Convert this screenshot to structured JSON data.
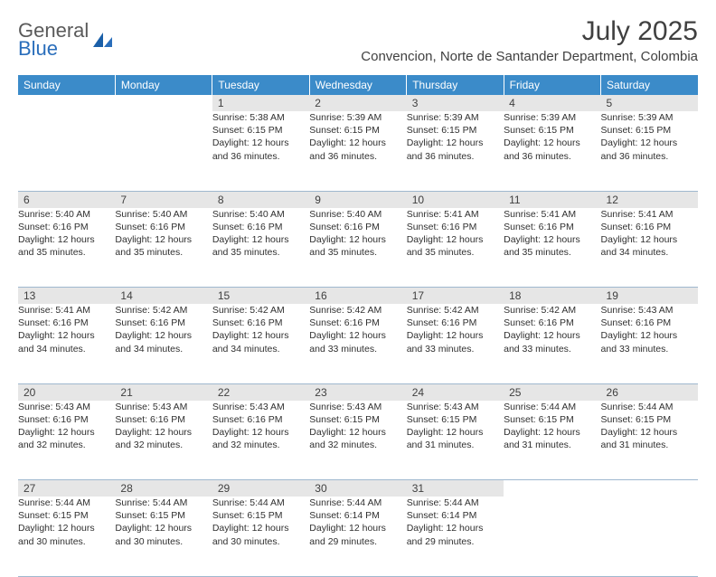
{
  "brand": {
    "word1": "General",
    "word2": "Blue"
  },
  "title": "July 2025",
  "location": "Convencion, Norte de Santander Department, Colombia",
  "colors": {
    "header_bg": "#3b8bc9",
    "header_text": "#ffffff",
    "daynum_bg": "#e6e6e6",
    "row_border": "#2a6496",
    "logo_gray": "#5a5a5a",
    "logo_blue": "#2a6ebb"
  },
  "weekdays": [
    "Sunday",
    "Monday",
    "Tuesday",
    "Wednesday",
    "Thursday",
    "Friday",
    "Saturday"
  ],
  "weeks": [
    [
      null,
      null,
      {
        "n": "1",
        "sr": "Sunrise: 5:38 AM",
        "ss": "Sunset: 6:15 PM",
        "dl1": "Daylight: 12 hours",
        "dl2": "and 36 minutes."
      },
      {
        "n": "2",
        "sr": "Sunrise: 5:39 AM",
        "ss": "Sunset: 6:15 PM",
        "dl1": "Daylight: 12 hours",
        "dl2": "and 36 minutes."
      },
      {
        "n": "3",
        "sr": "Sunrise: 5:39 AM",
        "ss": "Sunset: 6:15 PM",
        "dl1": "Daylight: 12 hours",
        "dl2": "and 36 minutes."
      },
      {
        "n": "4",
        "sr": "Sunrise: 5:39 AM",
        "ss": "Sunset: 6:15 PM",
        "dl1": "Daylight: 12 hours",
        "dl2": "and 36 minutes."
      },
      {
        "n": "5",
        "sr": "Sunrise: 5:39 AM",
        "ss": "Sunset: 6:15 PM",
        "dl1": "Daylight: 12 hours",
        "dl2": "and 36 minutes."
      }
    ],
    [
      {
        "n": "6",
        "sr": "Sunrise: 5:40 AM",
        "ss": "Sunset: 6:16 PM",
        "dl1": "Daylight: 12 hours",
        "dl2": "and 35 minutes."
      },
      {
        "n": "7",
        "sr": "Sunrise: 5:40 AM",
        "ss": "Sunset: 6:16 PM",
        "dl1": "Daylight: 12 hours",
        "dl2": "and 35 minutes."
      },
      {
        "n": "8",
        "sr": "Sunrise: 5:40 AM",
        "ss": "Sunset: 6:16 PM",
        "dl1": "Daylight: 12 hours",
        "dl2": "and 35 minutes."
      },
      {
        "n": "9",
        "sr": "Sunrise: 5:40 AM",
        "ss": "Sunset: 6:16 PM",
        "dl1": "Daylight: 12 hours",
        "dl2": "and 35 minutes."
      },
      {
        "n": "10",
        "sr": "Sunrise: 5:41 AM",
        "ss": "Sunset: 6:16 PM",
        "dl1": "Daylight: 12 hours",
        "dl2": "and 35 minutes."
      },
      {
        "n": "11",
        "sr": "Sunrise: 5:41 AM",
        "ss": "Sunset: 6:16 PM",
        "dl1": "Daylight: 12 hours",
        "dl2": "and 35 minutes."
      },
      {
        "n": "12",
        "sr": "Sunrise: 5:41 AM",
        "ss": "Sunset: 6:16 PM",
        "dl1": "Daylight: 12 hours",
        "dl2": "and 34 minutes."
      }
    ],
    [
      {
        "n": "13",
        "sr": "Sunrise: 5:41 AM",
        "ss": "Sunset: 6:16 PM",
        "dl1": "Daylight: 12 hours",
        "dl2": "and 34 minutes."
      },
      {
        "n": "14",
        "sr": "Sunrise: 5:42 AM",
        "ss": "Sunset: 6:16 PM",
        "dl1": "Daylight: 12 hours",
        "dl2": "and 34 minutes."
      },
      {
        "n": "15",
        "sr": "Sunrise: 5:42 AM",
        "ss": "Sunset: 6:16 PM",
        "dl1": "Daylight: 12 hours",
        "dl2": "and 34 minutes."
      },
      {
        "n": "16",
        "sr": "Sunrise: 5:42 AM",
        "ss": "Sunset: 6:16 PM",
        "dl1": "Daylight: 12 hours",
        "dl2": "and 33 minutes."
      },
      {
        "n": "17",
        "sr": "Sunrise: 5:42 AM",
        "ss": "Sunset: 6:16 PM",
        "dl1": "Daylight: 12 hours",
        "dl2": "and 33 minutes."
      },
      {
        "n": "18",
        "sr": "Sunrise: 5:42 AM",
        "ss": "Sunset: 6:16 PM",
        "dl1": "Daylight: 12 hours",
        "dl2": "and 33 minutes."
      },
      {
        "n": "19",
        "sr": "Sunrise: 5:43 AM",
        "ss": "Sunset: 6:16 PM",
        "dl1": "Daylight: 12 hours",
        "dl2": "and 33 minutes."
      }
    ],
    [
      {
        "n": "20",
        "sr": "Sunrise: 5:43 AM",
        "ss": "Sunset: 6:16 PM",
        "dl1": "Daylight: 12 hours",
        "dl2": "and 32 minutes."
      },
      {
        "n": "21",
        "sr": "Sunrise: 5:43 AM",
        "ss": "Sunset: 6:16 PM",
        "dl1": "Daylight: 12 hours",
        "dl2": "and 32 minutes."
      },
      {
        "n": "22",
        "sr": "Sunrise: 5:43 AM",
        "ss": "Sunset: 6:16 PM",
        "dl1": "Daylight: 12 hours",
        "dl2": "and 32 minutes."
      },
      {
        "n": "23",
        "sr": "Sunrise: 5:43 AM",
        "ss": "Sunset: 6:15 PM",
        "dl1": "Daylight: 12 hours",
        "dl2": "and 32 minutes."
      },
      {
        "n": "24",
        "sr": "Sunrise: 5:43 AM",
        "ss": "Sunset: 6:15 PM",
        "dl1": "Daylight: 12 hours",
        "dl2": "and 31 minutes."
      },
      {
        "n": "25",
        "sr": "Sunrise: 5:44 AM",
        "ss": "Sunset: 6:15 PM",
        "dl1": "Daylight: 12 hours",
        "dl2": "and 31 minutes."
      },
      {
        "n": "26",
        "sr": "Sunrise: 5:44 AM",
        "ss": "Sunset: 6:15 PM",
        "dl1": "Daylight: 12 hours",
        "dl2": "and 31 minutes."
      }
    ],
    [
      {
        "n": "27",
        "sr": "Sunrise: 5:44 AM",
        "ss": "Sunset: 6:15 PM",
        "dl1": "Daylight: 12 hours",
        "dl2": "and 30 minutes."
      },
      {
        "n": "28",
        "sr": "Sunrise: 5:44 AM",
        "ss": "Sunset: 6:15 PM",
        "dl1": "Daylight: 12 hours",
        "dl2": "and 30 minutes."
      },
      {
        "n": "29",
        "sr": "Sunrise: 5:44 AM",
        "ss": "Sunset: 6:15 PM",
        "dl1": "Daylight: 12 hours",
        "dl2": "and 30 minutes."
      },
      {
        "n": "30",
        "sr": "Sunrise: 5:44 AM",
        "ss": "Sunset: 6:14 PM",
        "dl1": "Daylight: 12 hours",
        "dl2": "and 29 minutes."
      },
      {
        "n": "31",
        "sr": "Sunrise: 5:44 AM",
        "ss": "Sunset: 6:14 PM",
        "dl1": "Daylight: 12 hours",
        "dl2": "and 29 minutes."
      },
      null,
      null
    ]
  ]
}
